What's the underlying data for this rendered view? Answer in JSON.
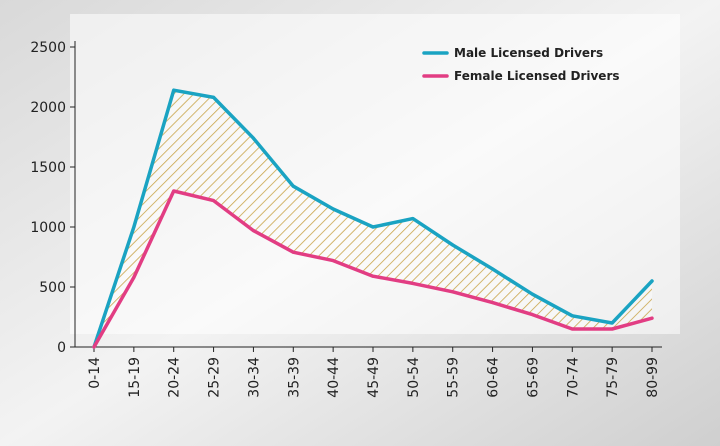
{
  "chart_data": {
    "type": "line",
    "categories": [
      "0-14",
      "15-19",
      "20-24",
      "25-29",
      "30-34",
      "35-39",
      "40-44",
      "45-49",
      "50-54",
      "55-59",
      "60-64",
      "65-69",
      "70-74",
      "75-79",
      "80-99"
    ],
    "series": [
      {
        "name": "Male Licensed Drivers",
        "color": "#1aa3c2",
        "values": [
          0,
          1000,
          2140,
          2080,
          1740,
          1340,
          1150,
          1000,
          1070,
          850,
          650,
          440,
          260,
          200,
          550
        ]
      },
      {
        "name": "Female Licensed Drivers",
        "color": "#e23d83",
        "values": [
          0,
          580,
          1300,
          1220,
          970,
          790,
          720,
          590,
          530,
          460,
          370,
          270,
          150,
          150,
          240
        ]
      }
    ],
    "fill_between": {
      "pattern": "diagonal-hatch",
      "color": "#c9a54a"
    },
    "ylim": [
      0,
      2500
    ],
    "yticks": [
      0,
      500,
      1000,
      1500,
      2000,
      2500
    ],
    "title": "",
    "xlabel": "",
    "ylabel": "",
    "legend": "top-right",
    "grid": false
  }
}
